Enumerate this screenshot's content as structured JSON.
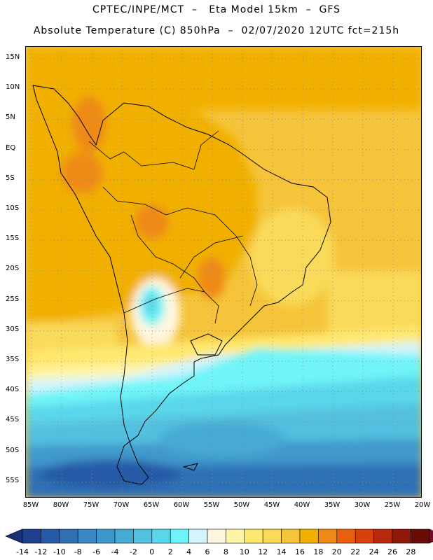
{
  "header": {
    "line1": "CPTEC/INPE/MCT  –   Eta Model 15km  –  GFS",
    "line2": "Absolute Temperature (C) 850hPa  –  02/07/2020 12UTC fct=215h"
  },
  "map": {
    "region": "South America",
    "lat_labels": [
      "15N",
      "10N",
      "5N",
      "EQ",
      "5S",
      "10S",
      "15S",
      "20S",
      "25S",
      "30S",
      "35S",
      "40S",
      "45S",
      "50S",
      "55S"
    ],
    "lon_labels": [
      "85W",
      "80W",
      "75W",
      "70W",
      "65W",
      "60W",
      "55W",
      "50W",
      "45W",
      "40W",
      "35W",
      "30W",
      "25W",
      "20W"
    ],
    "grid": "dotted",
    "variable_palette_note_colors": {
      "warm": "#f0a800",
      "cool": "#58c8e0"
    }
  },
  "colorbar": {
    "labels": [
      "-14",
      "-12",
      "-10",
      "-8",
      "-6",
      "-4",
      "-2",
      "0",
      "2",
      "4",
      "6",
      "8",
      "10",
      "12",
      "14",
      "16",
      "18",
      "20",
      "22",
      "24",
      "26",
      "28"
    ],
    "colors": [
      "#1f3f8f",
      "#255aa6",
      "#2f70b5",
      "#3b86c4",
      "#3f98cc",
      "#47aad4",
      "#52c0e0",
      "#5ad6ea",
      "#6ff4f8",
      "#d4f4fc",
      "#fff6e0",
      "#fff5a8",
      "#ffe870",
      "#fada5a",
      "#f5c43a",
      "#f1b000",
      "#ef8a18",
      "#e8600e",
      "#d8400c",
      "#b8280a",
      "#8f1808",
      "#6a0c06"
    ],
    "under_color": "#1c2f74",
    "over_color": "#7a0826"
  }
}
